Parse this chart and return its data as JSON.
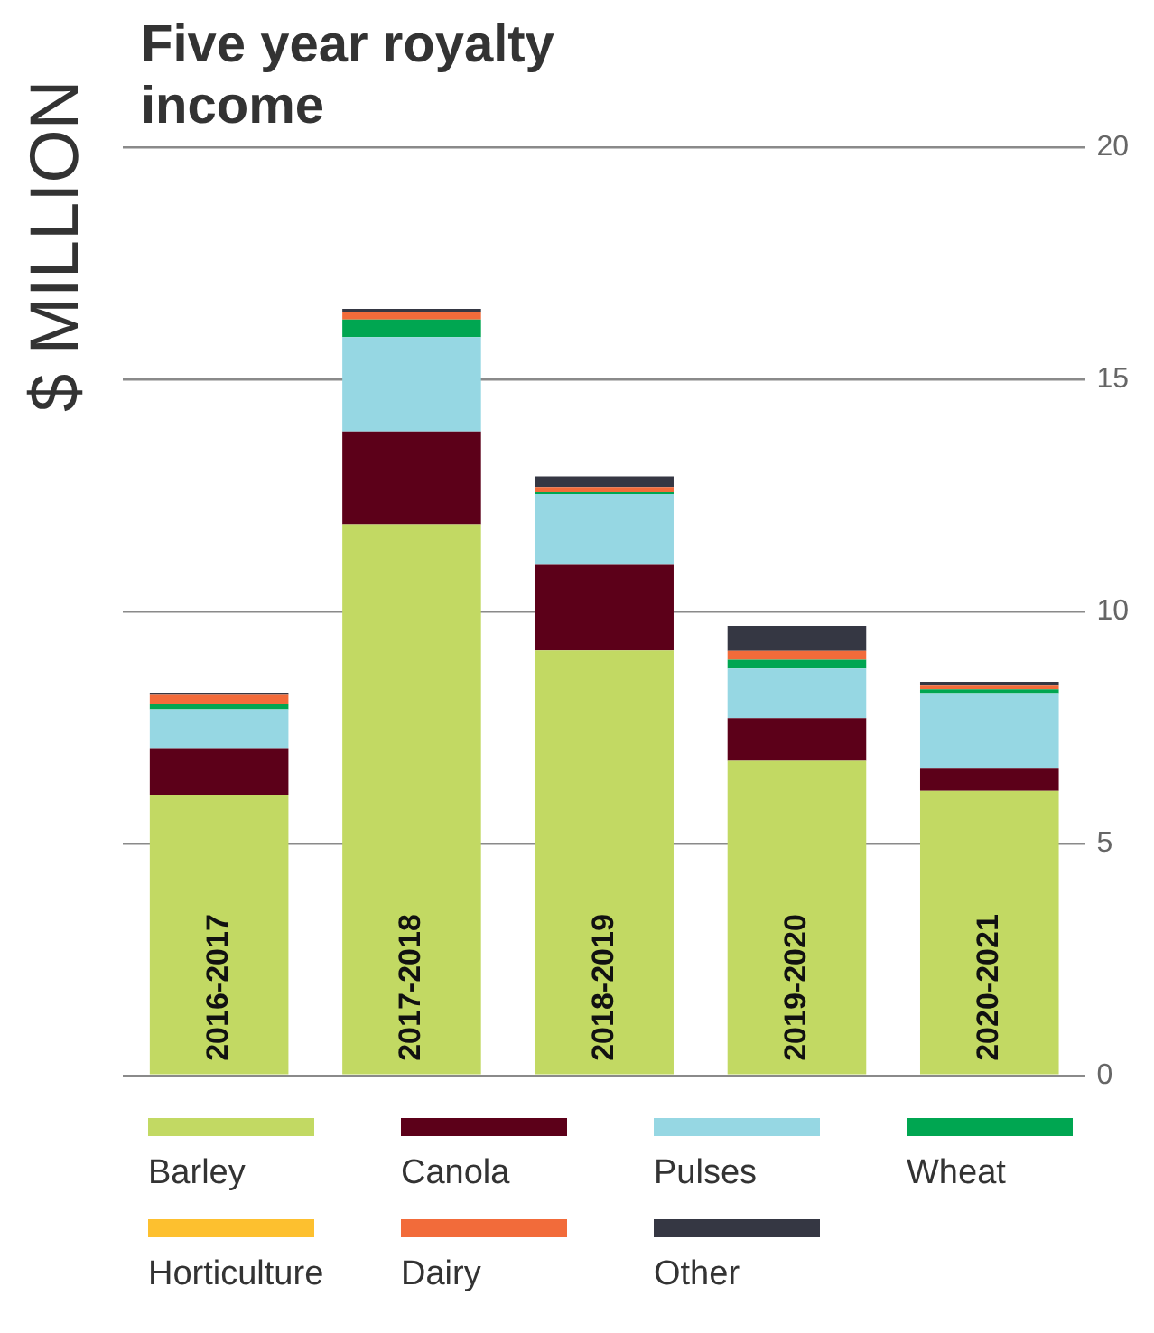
{
  "chart_data": {
    "type": "bar",
    "title": "Five year royalty income",
    "ylabel": "$ MILLION",
    "categories": [
      "2016-2017",
      "2017-2018",
      "2018-2019",
      "2019-2020",
      "2020-2021"
    ],
    "stacked": true,
    "ylim": [
      0,
      20
    ],
    "yticks": [
      0,
      5,
      10,
      15,
      20
    ],
    "grid": "y",
    "legend": "bottom",
    "series": [
      {
        "name": "Barley",
        "color": "#c2d963",
        "values": [
          6.05,
          11.88,
          9.16,
          6.78,
          6.13
        ]
      },
      {
        "name": "Canola",
        "color": "#5c0019",
        "values": [
          1.0,
          2.0,
          1.84,
          0.92,
          0.5
        ]
      },
      {
        "name": "Pulses",
        "color": "#96d7e3",
        "values": [
          0.84,
          2.03,
          1.53,
          1.07,
          1.61
        ]
      },
      {
        "name": "Wheat",
        "color": "#00a651",
        "values": [
          0.12,
          0.38,
          0.04,
          0.19,
          0.08
        ]
      },
      {
        "name": "Horticulture",
        "color": "#fdc02f",
        "values": [
          0,
          0,
          0,
          0,
          0
        ]
      },
      {
        "name": "Dairy",
        "color": "#f26b3a",
        "values": [
          0.19,
          0.15,
          0.11,
          0.19,
          0.08
        ]
      },
      {
        "name": "Other",
        "color": "#353743",
        "values": [
          0.05,
          0.08,
          0.23,
          0.54,
          0.08
        ]
      }
    ]
  }
}
